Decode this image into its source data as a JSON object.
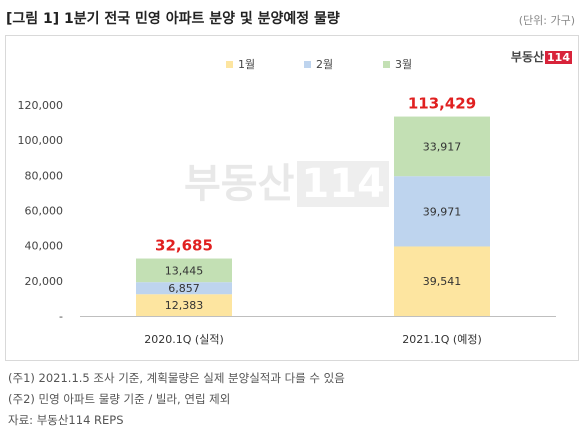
{
  "title": "[그림 1] 1분기 전국 민영 아파트 분양 및 분양예정 물량",
  "unit_label": "(단위: 가구)",
  "logo": {
    "text": "부동산",
    "num": "114"
  },
  "watermark": {
    "text": "부동산",
    "num": "114"
  },
  "chart_data": {
    "type": "bar",
    "stacked": true,
    "categories": [
      "2020.1Q (실적)",
      "2021.1Q (예정)"
    ],
    "series": [
      {
        "name": "1월",
        "values": [
          12383,
          39541
        ],
        "value_labels": [
          "12,383",
          "39,541"
        ],
        "color": "#fde5a0"
      },
      {
        "name": "2월",
        "values": [
          6857,
          39971
        ],
        "value_labels": [
          "6,857",
          "39,971"
        ],
        "color": "#bed4ee"
      },
      {
        "name": "3월",
        "values": [
          13445,
          33917
        ],
        "value_labels": [
          "13,445",
          "33,917"
        ],
        "color": "#c3e0b4"
      }
    ],
    "totals": [
      32685,
      113429
    ],
    "total_labels": [
      "32,685",
      "113,429"
    ],
    "total_color": "#e02020",
    "ylim": [
      0,
      120000
    ],
    "yticks": [
      0,
      20000,
      40000,
      60000,
      80000,
      100000,
      120000
    ],
    "ytick_labels": [
      "-",
      "20,000",
      "40,000",
      "60,000",
      "80,000",
      "100,000",
      "120,000"
    ],
    "legend_position": "top"
  },
  "notes": [
    "(주1) 2021.1.5 조사 기준, 계획물량은 실제 분양실적과 다를 수 있음",
    "(주2) 민영 아파트 물량 기준 / 빌라, 연립 제외",
    "자료: 부동산114 REPS"
  ]
}
